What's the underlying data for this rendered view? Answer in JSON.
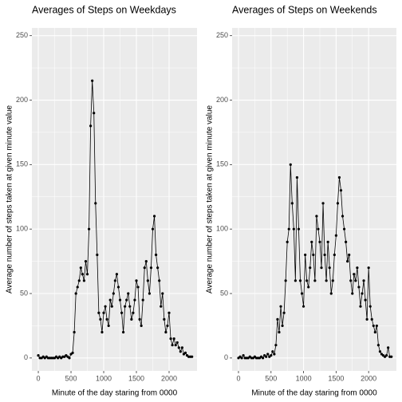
{
  "chart_data": [
    {
      "type": "line",
      "title": "Averages of Steps on Weekdays",
      "x_label": "Minute of the day staring from 0000",
      "y_label": "Average number of steps taken at given minute value",
      "x": [
        0,
        25,
        50,
        75,
        100,
        125,
        150,
        175,
        200,
        225,
        250,
        275,
        300,
        325,
        350,
        375,
        400,
        425,
        450,
        475,
        500,
        525,
        550,
        575,
        600,
        625,
        650,
        675,
        700,
        725,
        750,
        775,
        800,
        825,
        850,
        875,
        900,
        925,
        950,
        975,
        1000,
        1025,
        1050,
        1075,
        1100,
        1125,
        1150,
        1175,
        1200,
        1225,
        1250,
        1275,
        1300,
        1325,
        1350,
        1375,
        1400,
        1425,
        1450,
        1475,
        1500,
        1525,
        1550,
        1575,
        1600,
        1625,
        1650,
        1675,
        1700,
        1725,
        1750,
        1775,
        1800,
        1825,
        1850,
        1875,
        1900,
        1925,
        1950,
        1975,
        2000,
        2025,
        2050,
        2075,
        2100,
        2125,
        2150,
        2175,
        2200,
        2225,
        2250,
        2275,
        2300,
        2325,
        2350
      ],
      "series": [
        {
          "color": "#000000",
          "values": [
            2,
            0,
            0,
            1,
            0,
            1,
            0,
            0,
            0,
            0,
            0,
            1,
            0,
            1,
            0,
            1,
            1,
            2,
            1,
            0,
            3,
            4,
            20,
            50,
            55,
            60,
            70,
            65,
            60,
            75,
            65,
            100,
            180,
            215,
            190,
            120,
            80,
            35,
            30,
            20,
            35,
            40,
            30,
            25,
            45,
            40,
            50,
            60,
            65,
            55,
            45,
            35,
            20,
            40,
            45,
            50,
            40,
            30,
            35,
            45,
            60,
            55,
            30,
            25,
            45,
            70,
            75,
            60,
            50,
            70,
            100,
            110,
            80,
            70,
            60,
            40,
            50,
            30,
            20,
            25,
            35,
            15,
            10,
            15,
            10,
            12,
            8,
            5,
            8,
            3,
            4,
            2,
            1,
            1,
            1
          ]
        }
      ],
      "xlim": [
        -98,
        2427
      ],
      "ylim": [
        -10,
        256
      ],
      "xticks": [
        0,
        500,
        1000,
        1500,
        2000
      ],
      "yticks": [
        0,
        50,
        100,
        150,
        200,
        250
      ],
      "grid": true
    },
    {
      "type": "line",
      "title": "Averages of Steps on Weekends",
      "x_label": "Minute of the day staring from 0000",
      "y_label": "Average number of steps taken at given minute value",
      "x": [
        0,
        25,
        50,
        75,
        100,
        125,
        150,
        175,
        200,
        225,
        250,
        275,
        300,
        325,
        350,
        375,
        400,
        425,
        450,
        475,
        500,
        525,
        550,
        575,
        600,
        625,
        650,
        675,
        700,
        725,
        750,
        775,
        800,
        825,
        850,
        875,
        900,
        925,
        950,
        975,
        1000,
        1025,
        1050,
        1075,
        1100,
        1125,
        1150,
        1175,
        1200,
        1225,
        1250,
        1275,
        1300,
        1325,
        1350,
        1375,
        1400,
        1425,
        1450,
        1475,
        1500,
        1525,
        1550,
        1575,
        1600,
        1625,
        1650,
        1675,
        1700,
        1725,
        1750,
        1775,
        1800,
        1825,
        1850,
        1875,
        1900,
        1925,
        1950,
        1975,
        2000,
        2025,
        2050,
        2075,
        2100,
        2125,
        2150,
        2175,
        2200,
        2225,
        2250,
        2275,
        2300,
        2325,
        2350
      ],
      "series": [
        {
          "color": "#000000",
          "values": [
            0,
            1,
            0,
            2,
            0,
            0,
            0,
            1,
            0,
            0,
            1,
            0,
            0,
            0,
            1,
            0,
            2,
            1,
            3,
            1,
            2,
            5,
            3,
            10,
            30,
            20,
            40,
            25,
            35,
            60,
            90,
            100,
            150,
            120,
            100,
            60,
            140,
            100,
            60,
            50,
            40,
            80,
            60,
            55,
            70,
            90,
            80,
            60,
            110,
            100,
            90,
            70,
            120,
            80,
            60,
            90,
            70,
            50,
            60,
            80,
            95,
            120,
            140,
            130,
            110,
            100,
            90,
            75,
            80,
            60,
            50,
            65,
            60,
            70,
            55,
            40,
            50,
            60,
            45,
            30,
            70,
            40,
            30,
            25,
            20,
            25,
            10,
            5,
            3,
            2,
            1,
            2,
            8,
            1,
            1
          ]
        }
      ],
      "xlim": [
        -98,
        2427
      ],
      "ylim": [
        -10,
        256
      ],
      "xticks": [
        0,
        500,
        1000,
        1500,
        2000
      ],
      "yticks": [
        0,
        50,
        100,
        150,
        200,
        250
      ],
      "grid": true
    }
  ]
}
